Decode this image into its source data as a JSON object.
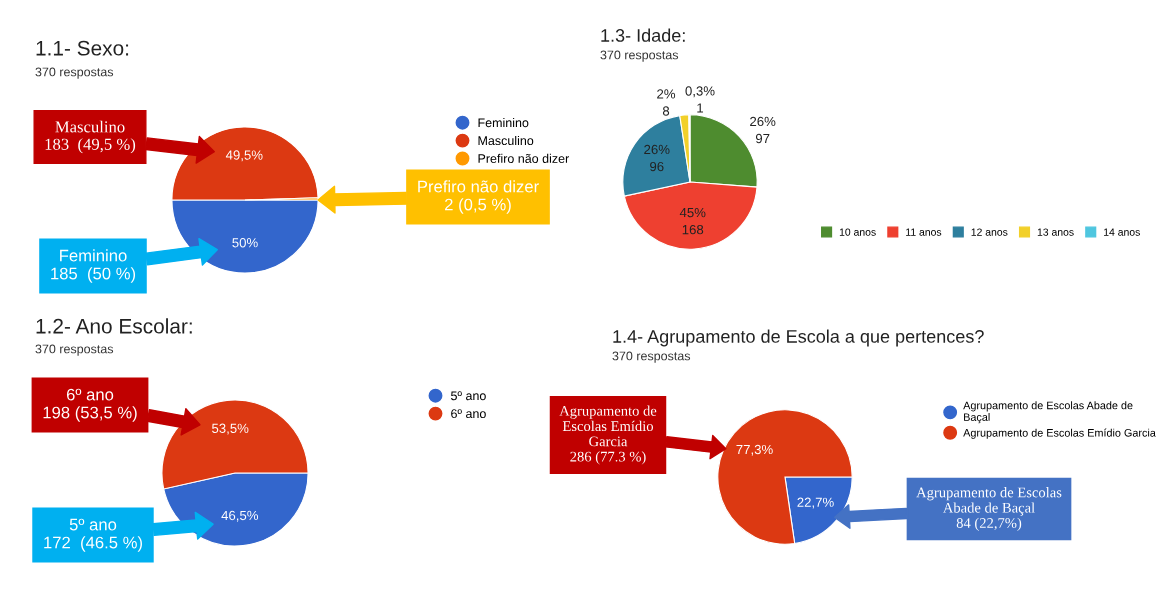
{
  "chart_data": [
    {
      "type": "pie",
      "title": "1.1- Sexo:",
      "subtitle": "370 respostas",
      "categories": [
        "Feminino",
        "Masculino",
        "Prefiro não dizer"
      ],
      "values": [
        50,
        49.5,
        0.5
      ],
      "colors": [
        "#3366cc",
        "#dc3912",
        "#ff9900"
      ],
      "value_labels": [
        "50%",
        "49,5%",
        null
      ],
      "legend": "top right",
      "annotations": [
        "Masculino\n183  (49,5 %)",
        "Prefiro não dizer\n2 (0,5 %)",
        "Feminino\n185  (50 %)"
      ]
    },
    {
      "type": "pie",
      "title": "1.3- Idade:",
      "subtitle": "370 respostas",
      "categories": [
        "10 anos",
        "11 anos",
        "12 anos",
        "13 anos",
        "14 anos"
      ],
      "values": [
        97,
        168,
        96,
        8,
        1
      ],
      "colors": [
        "#4e8c2f",
        "#ee4030",
        "#2e7f9e",
        "#f2d02a",
        "#4fc6df"
      ],
      "value_labels": [
        "26%\n97",
        "45%\n168",
        "26%\n96",
        "2%\n8",
        "0,3%\n1"
      ],
      "legend": "bottom right"
    },
    {
      "type": "pie",
      "title": "1.2- Ano Escolar:",
      "subtitle": "370 respostas",
      "categories": [
        "5º ano",
        "6º ano"
      ],
      "values": [
        46.5,
        53.5
      ],
      "colors": [
        "#3366cc",
        "#dc3912"
      ],
      "value_labels": [
        "46,5%",
        "53,5%"
      ],
      "legend": "top right",
      "annotations": [
        "6º ano\n198 (53,5 %)",
        "5º ano\n172  (46.5 %)"
      ]
    },
    {
      "type": "pie",
      "title": "1.4- Agrupamento de Escola a que pertences?",
      "subtitle": "370 respostas",
      "categories": [
        "Agrupamento de Escolas Abade de\nBaçal",
        "Agrupamento de Escolas Emídio Garcia"
      ],
      "values": [
        22.7,
        77.3
      ],
      "colors": [
        "#3366cc",
        "#dc3912"
      ],
      "value_labels": [
        "22,7%",
        "77,3%"
      ],
      "legend": "top right",
      "annotations": [
        "Agrupamento de\nEscolas Emídio\nGarcia\n286 (77.3 %)",
        "Agrupamento de Escolas\nAbade de Baçal\n84 (22,7%)"
      ]
    }
  ]
}
